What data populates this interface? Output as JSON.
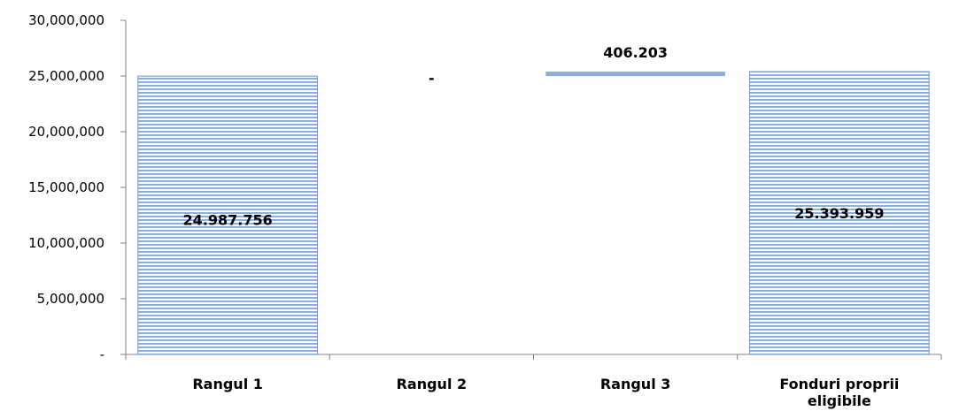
{
  "chart_data": {
    "type": "bar",
    "subtype": "waterfall",
    "categories": [
      "Rangul 1",
      "Rangul 2",
      "Rangul 3",
      "Fonduri proprii eligibile"
    ],
    "category_label_lines": [
      [
        "Rangul 1"
      ],
      [
        "Rangul 2"
      ],
      [
        "Rangul 3"
      ],
      [
        "Fonduri proprii",
        "eligibile"
      ]
    ],
    "values": [
      24987756,
      0,
      406203,
      25393959
    ],
    "bases": [
      0,
      24987756,
      24987756,
      0
    ],
    "data_labels": [
      "24.987.756",
      "-",
      "406.203",
      "25.393.959"
    ],
    "ylim": [
      0,
      30000000
    ],
    "yticks": [
      0,
      5000000,
      10000000,
      15000000,
      20000000,
      25000000,
      30000000
    ],
    "ytick_labels": [
      "-",
      "5,000,000",
      "10,000,000",
      "15,000,000",
      "20,000,000",
      "25,000,000",
      "30,000,000"
    ],
    "grid": false,
    "legend": "none",
    "bar_styles": [
      "hatched",
      "none",
      "solid",
      "hatched"
    ],
    "colors": {
      "bar": "#8eaedb",
      "bar_stroke": "#7fa3d6",
      "axis": "#808080"
    }
  }
}
